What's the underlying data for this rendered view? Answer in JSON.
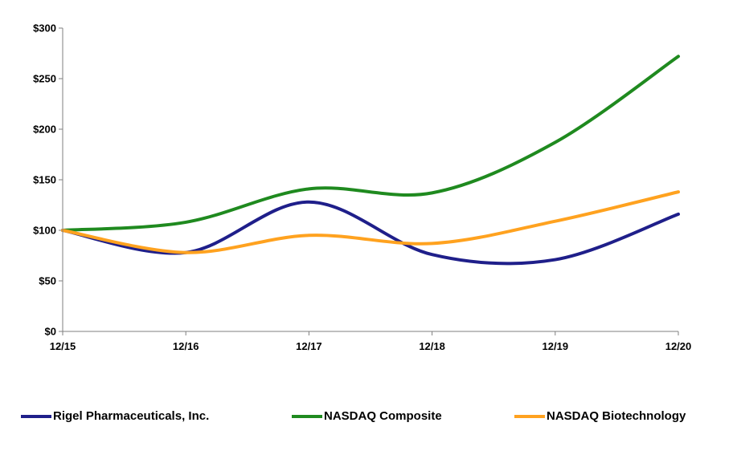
{
  "chart_data": {
    "type": "line",
    "title": "",
    "xlabel": "",
    "ylabel": "",
    "categories": [
      "12/15",
      "12/16",
      "12/17",
      "12/18",
      "12/19",
      "12/20"
    ],
    "ylim": [
      0,
      300
    ],
    "yticks": [
      0,
      50,
      100,
      150,
      200,
      250,
      300
    ],
    "ytick_labels": [
      "$0",
      "$50",
      "$100",
      "$150",
      "$200",
      "$250",
      "$300"
    ],
    "grid": false,
    "legend_position": "bottom",
    "series": [
      {
        "name": "Rigel Pharmaceuticals, Inc.",
        "color": "#1f1f8a",
        "values": [
          100,
          78,
          128,
          76,
          71,
          116
        ]
      },
      {
        "name": "NASDAQ Composite",
        "color": "#1f8a1f",
        "values": [
          100,
          108,
          141,
          137,
          187,
          272
        ]
      },
      {
        "name": "NASDAQ Biotechnology",
        "color": "#ffa21f",
        "values": [
          100,
          78,
          95,
          87,
          109,
          138
        ]
      }
    ]
  }
}
